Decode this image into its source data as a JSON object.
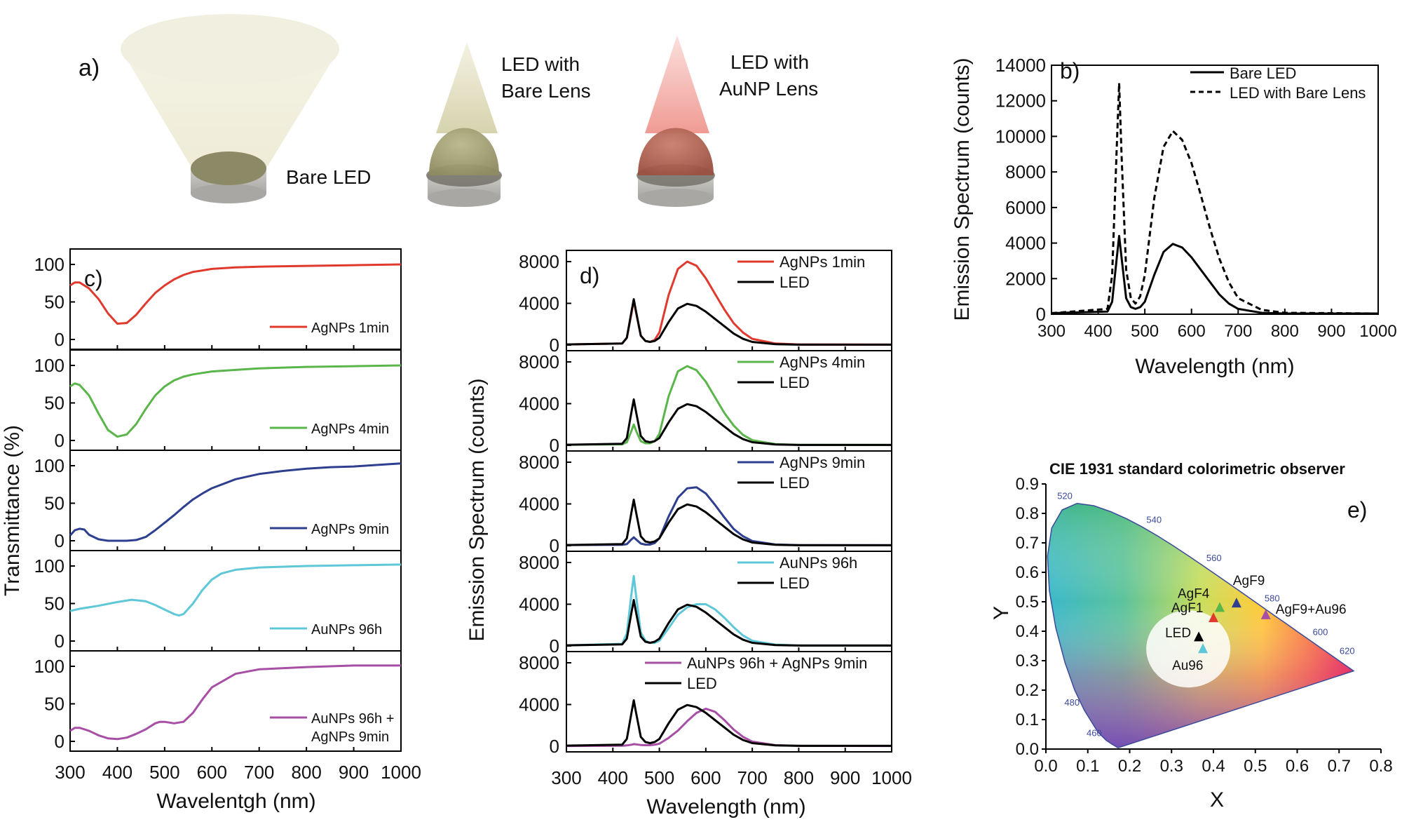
{
  "panel_a": {
    "label": "a)",
    "items": [
      {
        "caption": "Bare LED",
        "color": "#e8e5c6"
      },
      {
        "caption_line1": "LED with",
        "caption_line2": "Bare Lens",
        "color": "#d7d4a8"
      },
      {
        "caption_line1": "LED with",
        "caption_line2": "AuNP Lens",
        "color": "#f3a9a3"
      }
    ]
  },
  "chart_data": [
    {
      "id": "b",
      "type": "line",
      "panel_label": "b)",
      "xlabel": "Wavelength (nm)",
      "ylabel": "Emission Spectrum (counts)",
      "xlim": [
        300,
        1000
      ],
      "ylim": [
        0,
        14000
      ],
      "xticks": [
        300,
        400,
        500,
        600,
        700,
        800,
        900,
        1000
      ],
      "yticks": [
        0,
        2000,
        4000,
        6000,
        8000,
        10000,
        12000,
        14000
      ],
      "legend_position": "top-right",
      "series": [
        {
          "name": "Bare LED",
          "style": "solid",
          "color": "#000000",
          "x": [
            300,
            420,
            430,
            440,
            445,
            450,
            460,
            470,
            480,
            490,
            500,
            520,
            540,
            560,
            580,
            600,
            620,
            640,
            660,
            680,
            700,
            750,
            800,
            1000
          ],
          "y": [
            60,
            150,
            700,
            3200,
            4400,
            3200,
            900,
            400,
            300,
            400,
            700,
            2200,
            3500,
            3950,
            3750,
            3200,
            2500,
            1800,
            1100,
            600,
            300,
            80,
            40,
            40
          ]
        },
        {
          "name": "LED with Bare Lens",
          "style": "dashed",
          "color": "#000000",
          "x": [
            300,
            420,
            430,
            440,
            445,
            450,
            460,
            470,
            480,
            490,
            500,
            520,
            540,
            560,
            580,
            600,
            620,
            640,
            660,
            680,
            700,
            750,
            800,
            1000
          ],
          "y": [
            60,
            300,
            2200,
            9500,
            13000,
            9000,
            2500,
            900,
            600,
            1000,
            2200,
            6500,
            9400,
            10300,
            9800,
            8500,
            6700,
            4800,
            3100,
            1800,
            900,
            250,
            80,
            40
          ]
        }
      ]
    },
    {
      "id": "c",
      "type": "line",
      "panel_label": "c)",
      "xlabel": "Wavelentgh (nm)",
      "ylabel": "Transmittance (%)",
      "xlim": [
        300,
        1000
      ],
      "ylim": [
        0,
        100
      ],
      "xticks": [
        300,
        400,
        500,
        600,
        700,
        800,
        900,
        1000
      ],
      "yticks": [
        0,
        50,
        100
      ],
      "legend_position": "bottom-right",
      "subplots": [
        {
          "legend": [
            "AgNPs 1min"
          ],
          "color": "#e03a2f",
          "x": [
            300,
            310,
            320,
            340,
            360,
            380,
            400,
            420,
            440,
            460,
            480,
            500,
            520,
            540,
            560,
            580,
            600,
            650,
            700,
            800,
            900,
            1000
          ],
          "y": [
            72,
            76,
            76,
            68,
            54,
            35,
            21,
            22,
            33,
            48,
            62,
            72,
            80,
            86,
            90,
            92,
            94,
            96,
            97,
            98,
            99,
            100
          ]
        },
        {
          "legend": [
            "AgNPs 4min"
          ],
          "color": "#5ab54a",
          "x": [
            300,
            310,
            320,
            340,
            360,
            380,
            400,
            420,
            440,
            460,
            480,
            500,
            520,
            540,
            560,
            580,
            600,
            650,
            700,
            800,
            900,
            1000
          ],
          "y": [
            72,
            76,
            74,
            60,
            36,
            14,
            5,
            8,
            22,
            42,
            60,
            72,
            80,
            85,
            88,
            90,
            92,
            94,
            96,
            98,
            99,
            100
          ]
        },
        {
          "legend": [
            "AgNPs 9min"
          ],
          "color": "#2e3f8f",
          "x": [
            300,
            310,
            320,
            330,
            340,
            360,
            380,
            400,
            420,
            440,
            460,
            480,
            500,
            520,
            540,
            560,
            580,
            600,
            650,
            700,
            750,
            800,
            850,
            900,
            950,
            1000
          ],
          "y": [
            7,
            14,
            16,
            15,
            8,
            2,
            0,
            0,
            0,
            1,
            5,
            14,
            24,
            34,
            45,
            55,
            63,
            70,
            82,
            89,
            93,
            96,
            98,
            99,
            101,
            103
          ]
        },
        {
          "legend": [
            "AuNPs 96h"
          ],
          "color": "#5ec7d8",
          "x": [
            300,
            320,
            360,
            400,
            430,
            460,
            480,
            500,
            520,
            530,
            540,
            560,
            580,
            600,
            620,
            650,
            700,
            800,
            900,
            1000
          ],
          "y": [
            40,
            43,
            47,
            52,
            55,
            53,
            48,
            42,
            36,
            34,
            36,
            50,
            68,
            82,
            90,
            95,
            98,
            100,
            101,
            102
          ]
        },
        {
          "legend": [
            "AuNPs 96h +",
            "AgNPs 9min"
          ],
          "color": "#a64fa5",
          "x": [
            300,
            310,
            320,
            340,
            360,
            380,
            400,
            420,
            440,
            460,
            480,
            490,
            500,
            520,
            540,
            560,
            580,
            600,
            650,
            700,
            800,
            900,
            1000
          ],
          "y": [
            14,
            18,
            18,
            14,
            8,
            4,
            3,
            5,
            10,
            16,
            24,
            26,
            26,
            24,
            26,
            38,
            56,
            72,
            90,
            96,
            99,
            101,
            101
          ]
        }
      ]
    },
    {
      "id": "d",
      "type": "line",
      "panel_label": "d)",
      "xlabel": "Wavelength (nm)",
      "ylabel": "Emission Spectrum (counts)",
      "xlim": [
        300,
        1000
      ],
      "ylim": [
        0,
        8000
      ],
      "xticks": [
        300,
        400,
        500,
        600,
        700,
        800,
        900,
        1000
      ],
      "yticks": [
        0,
        4000,
        8000
      ],
      "legend_position": "top-right",
      "led_reference": {
        "name": "LED",
        "color": "#000000",
        "x": [
          300,
          420,
          430,
          440,
          445,
          450,
          460,
          470,
          480,
          490,
          500,
          520,
          540,
          560,
          580,
          600,
          620,
          640,
          660,
          680,
          700,
          750,
          800,
          1000
        ],
        "y": [
          60,
          150,
          700,
          3200,
          4400,
          3200,
          900,
          400,
          300,
          400,
          700,
          2200,
          3500,
          3950,
          3750,
          3200,
          2500,
          1800,
          1100,
          600,
          300,
          80,
          40,
          40
        ]
      },
      "subplots": [
        {
          "legend": "AgNPs 1min",
          "color": "#e03a2f",
          "x": [
            300,
            420,
            430,
            440,
            445,
            450,
            460,
            470,
            480,
            490,
            500,
            520,
            540,
            560,
            580,
            600,
            620,
            640,
            660,
            680,
            700,
            750,
            800,
            1000
          ],
          "y": [
            60,
            150,
            700,
            3000,
            4300,
            3100,
            900,
            400,
            300,
            500,
            1200,
            4800,
            7300,
            8000,
            7600,
            6400,
            4900,
            3400,
            2100,
            1200,
            600,
            150,
            60,
            40
          ]
        },
        {
          "legend": "AgNPs 4min",
          "color": "#5ab54a",
          "x": [
            300,
            420,
            430,
            440,
            445,
            450,
            460,
            470,
            480,
            490,
            500,
            520,
            540,
            560,
            580,
            600,
            620,
            640,
            660,
            680,
            700,
            750,
            800,
            1000
          ],
          "y": [
            60,
            100,
            300,
            1400,
            2000,
            1400,
            400,
            200,
            200,
            400,
            1100,
            4700,
            7100,
            7600,
            7200,
            6100,
            4600,
            3100,
            1900,
            1000,
            500,
            120,
            50,
            40
          ]
        },
        {
          "legend": "AgNPs 9min",
          "color": "#2e3f8f",
          "x": [
            300,
            420,
            430,
            440,
            445,
            450,
            460,
            470,
            480,
            490,
            500,
            520,
            540,
            560,
            580,
            600,
            620,
            640,
            660,
            680,
            700,
            750,
            800,
            1000
          ],
          "y": [
            60,
            80,
            150,
            600,
            800,
            600,
            200,
            100,
            100,
            250,
            700,
            2800,
            4600,
            5500,
            5600,
            5000,
            3900,
            2700,
            1600,
            900,
            450,
            110,
            50,
            40
          ]
        },
        {
          "legend": "AuNPs 96h",
          "color": "#5ec7d8",
          "x": [
            300,
            420,
            430,
            440,
            445,
            450,
            460,
            470,
            480,
            490,
            500,
            520,
            540,
            560,
            580,
            600,
            620,
            640,
            660,
            680,
            700,
            750,
            800,
            1000
          ],
          "y": [
            60,
            200,
            1200,
            5000,
            6700,
            4800,
            1300,
            500,
            300,
            300,
            500,
            1700,
            3000,
            3700,
            4000,
            4000,
            3500,
            2700,
            1800,
            1000,
            500,
            130,
            50,
            40
          ]
        },
        {
          "legend": "AuNPs 96h + AgNPs 9min",
          "color": "#a64fa5",
          "x": [
            300,
            420,
            430,
            440,
            445,
            450,
            460,
            470,
            480,
            490,
            500,
            520,
            540,
            560,
            580,
            600,
            620,
            640,
            660,
            680,
            700,
            750,
            800,
            1000
          ],
          "y": [
            30,
            50,
            80,
            150,
            200,
            180,
            120,
            100,
            100,
            150,
            250,
            800,
            1500,
            2400,
            3200,
            3600,
            3300,
            2500,
            1600,
            900,
            450,
            100,
            40,
            30
          ]
        }
      ]
    },
    {
      "id": "e",
      "type": "scatter",
      "panel_label": "e)",
      "title": "CIE 1931 standard colorimetric observer",
      "xlabel": "X",
      "ylabel": "Y",
      "xlim": [
        0.0,
        0.8
      ],
      "ylim": [
        0.0,
        0.9
      ],
      "xticks": [
        "0.0",
        "0.1",
        "0.2",
        "0.3",
        "0.4",
        "0.5",
        "0.6",
        "0.7",
        "0.8"
      ],
      "yticks": [
        "0.0",
        "0.1",
        "0.2",
        "0.3",
        "0.4",
        "0.5",
        "0.6",
        "0.7",
        "0.8",
        "0.9"
      ],
      "wavelength_labels": [
        {
          "text": "520",
          "x": 0.074,
          "y": 0.834
        },
        {
          "text": "540",
          "x": 0.23,
          "y": 0.754
        },
        {
          "text": "560",
          "x": 0.373,
          "y": 0.624
        },
        {
          "text": "580",
          "x": 0.512,
          "y": 0.487
        },
        {
          "text": "600",
          "x": 0.627,
          "y": 0.373
        },
        {
          "text": "620",
          "x": 0.691,
          "y": 0.308
        },
        {
          "text": "480",
          "x": 0.091,
          "y": 0.133
        },
        {
          "text": "460",
          "x": 0.144,
          "y": 0.03
        }
      ],
      "points": [
        {
          "label": "AgF9",
          "x": 0.455,
          "y": 0.495,
          "color": "#2e3f8f"
        },
        {
          "label": "AgF4",
          "x": 0.415,
          "y": 0.48,
          "color": "#5ab54a"
        },
        {
          "label": "AgF1",
          "x": 0.4,
          "y": 0.445,
          "color": "#e03a2f"
        },
        {
          "label": "LED",
          "x": 0.365,
          "y": 0.38,
          "color": "#000000"
        },
        {
          "label": "Au96",
          "x": 0.375,
          "y": 0.34,
          "color": "#5ec7d8"
        },
        {
          "label": "AgF9+Au96",
          "x": 0.525,
          "y": 0.455,
          "color": "#a64fa5"
        }
      ]
    }
  ]
}
